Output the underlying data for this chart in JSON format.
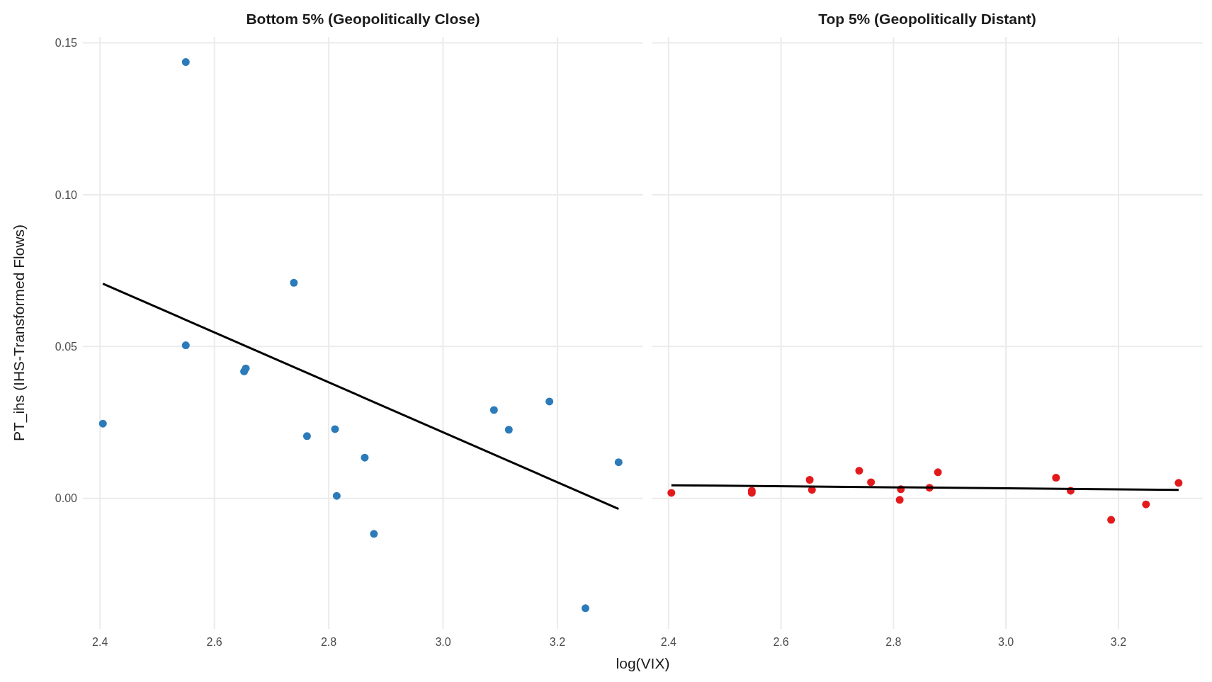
{
  "chart_data": [
    {
      "type": "scatter",
      "title": "Bottom 5% (Geopolitically Close)",
      "xlabel": "log(VIX)",
      "ylabel": "PT_ihs (IHS-Transformed Flows)",
      "xlim": [
        2.37,
        3.35
      ],
      "xticks": [
        {
          "value": 2.4,
          "label": "2.4"
        },
        {
          "value": 2.6,
          "label": "2.6"
        },
        {
          "value": 2.8,
          "label": "2.8"
        },
        {
          "value": 3.0,
          "label": "3.0"
        },
        {
          "value": 3.2,
          "label": "3.2"
        }
      ],
      "ylim": [
        -0.043,
        0.152
      ],
      "yticks": [
        {
          "value": 0,
          "label": "0.00"
        },
        {
          "value": 0.05,
          "label": "0.05"
        },
        {
          "value": 0.1,
          "label": "0.10"
        },
        {
          "value": 0.15,
          "label": "0.15"
        }
      ],
      "grid": true,
      "series": [
        {
          "marker": "circle",
          "color": "#2b7bba",
          "x": [
            2.405,
            2.55,
            2.55,
            2.739,
            2.652,
            2.655,
            2.762,
            2.811,
            2.814,
            2.863,
            2.879,
            3.089,
            3.115,
            3.186,
            3.249,
            3.307
          ],
          "values": [
            0.0246,
            0.1437,
            0.0504,
            0.071,
            0.0418,
            0.0428,
            0.0205,
            0.0228,
            0.0008,
            0.0134,
            -0.0117,
            0.0291,
            0.0226,
            0.0319,
            -0.0362,
            0.0119
          ]
        },
        {
          "type": "line",
          "color": "#000000",
          "x": [
            2.405,
            3.307
          ],
          "values": [
            0.0707,
            -0.0035
          ]
        }
      ]
    },
    {
      "type": "scatter",
      "title": "Top 5% (Geopolitically Distant)",
      "xlim": [
        2.37,
        3.35
      ],
      "xticks": [
        {
          "value": 2.4,
          "label": "2.4"
        },
        {
          "value": 2.6,
          "label": "2.6"
        },
        {
          "value": 2.8,
          "label": "2.8"
        },
        {
          "value": 3.0,
          "label": "3.0"
        },
        {
          "value": 3.2,
          "label": "3.2"
        }
      ],
      "ylim": [
        -0.043,
        0.152
      ],
      "yticks": [
        0,
        0.05,
        0.1,
        0.15
      ],
      "tick_labels": "x",
      "grid": true,
      "series": [
        {
          "marker": "circle",
          "color": "#e31a1c",
          "x": [
            2.405,
            2.548,
            2.548,
            2.651,
            2.655,
            2.739,
            2.76,
            2.813,
            2.811,
            2.864,
            2.879,
            3.089,
            3.115,
            3.187,
            3.249,
            3.307
          ],
          "values": [
            0.0018,
            0.0025,
            0.0018,
            0.0061,
            0.0028,
            0.0091,
            0.0053,
            0.003,
            -0.0005,
            0.0035,
            0.0086,
            0.0068,
            0.0025,
            -0.0071,
            -0.002,
            0.0051
          ]
        },
        {
          "type": "line",
          "color": "#000000",
          "x": [
            2.405,
            3.307
          ],
          "values": [
            0.0043,
            0.0028
          ]
        }
      ]
    }
  ]
}
